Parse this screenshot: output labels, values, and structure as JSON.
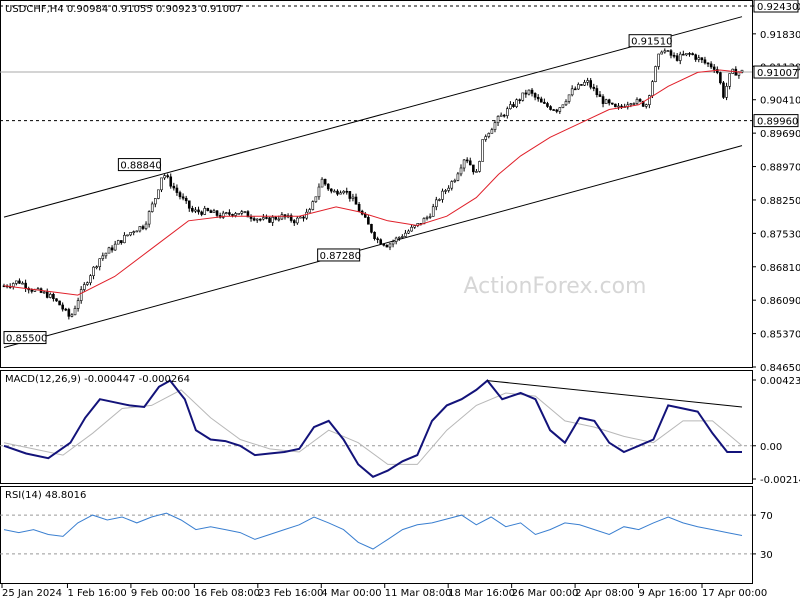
{
  "chart_data": {
    "type": "candlestick",
    "symbol": "USDCHF,H4",
    "header": "USDCHF,H4  0.90984 0.91055 0.90923 0.91007",
    "watermark": "ActionForex.com",
    "current_price": "0.91007",
    "price_axis": {
      "ylim": [
        0.8465,
        0.9243
      ],
      "ticks": [
        "0.92430",
        "0.91830",
        "0.91130",
        "0.90410",
        "0.89690",
        "0.88970",
        "0.88250",
        "0.87530",
        "0.86810",
        "0.86090",
        "0.85370",
        "0.84650"
      ],
      "tick_values": [
        0.9243,
        0.9183,
        0.9113,
        0.9041,
        0.8969,
        0.8897,
        0.8825,
        0.8753,
        0.8681,
        0.8609,
        0.8537,
        0.8465
      ]
    },
    "x_ticks": [
      "25 Jan 2024",
      "1 Feb 16:00",
      "9 Feb 00:00",
      "16 Feb 08:00",
      "23 Feb 16:00",
      "4 Mar 00:00",
      "11 Mar 08:00",
      "18 Mar 16:00",
      "26 Mar 00:00",
      "2 Apr 08:00",
      "9 Apr 16:00",
      "17 Apr 00:00"
    ],
    "annotations": [
      {
        "text": "0.85500",
        "value": 0.855
      },
      {
        "text": "0.88840",
        "value": 0.8884
      },
      {
        "text": "0.87280",
        "value": 0.8728
      },
      {
        "text": "0.91510",
        "value": 0.9151
      }
    ],
    "horizontal_levels": [
      {
        "text": "0.92430",
        "value": 0.9243,
        "style": "dashed"
      },
      {
        "text": "0.89960",
        "value": 0.8996,
        "style": "dashed"
      },
      {
        "text": "0.91007",
        "value": 0.91007,
        "style": "solid"
      }
    ],
    "channel_lines": {
      "upper": [
        [
          0.0,
          0.8788
        ],
        [
          1.0,
          0.922
        ]
      ],
      "lower": [
        [
          0.0,
          0.8507
        ],
        [
          1.0,
          0.8942
        ]
      ]
    },
    "price_path": [
      [
        0.0,
        0.864
      ],
      [
        0.02,
        0.865
      ],
      [
        0.04,
        0.863
      ],
      [
        0.06,
        0.862
      ],
      [
        0.075,
        0.86
      ],
      [
        0.09,
        0.857
      ],
      [
        0.1,
        0.861
      ],
      [
        0.115,
        0.866
      ],
      [
        0.13,
        0.87
      ],
      [
        0.145,
        0.872
      ],
      [
        0.16,
        0.874
      ],
      [
        0.175,
        0.876
      ],
      [
        0.19,
        0.877
      ],
      [
        0.205,
        0.883
      ],
      [
        0.215,
        0.8884
      ],
      [
        0.235,
        0.884
      ],
      [
        0.255,
        0.88
      ],
      [
        0.275,
        0.88
      ],
      [
        0.295,
        0.879
      ],
      [
        0.315,
        0.88
      ],
      [
        0.335,
        0.879
      ],
      [
        0.355,
        0.878
      ],
      [
        0.375,
        0.879
      ],
      [
        0.395,
        0.878
      ],
      [
        0.415,
        0.88
      ],
      [
        0.43,
        0.887
      ],
      [
        0.445,
        0.884
      ],
      [
        0.46,
        0.885
      ],
      [
        0.475,
        0.882
      ],
      [
        0.49,
        0.878
      ],
      [
        0.505,
        0.874
      ],
      [
        0.52,
        0.8728
      ],
      [
        0.54,
        0.875
      ],
      [
        0.56,
        0.877
      ],
      [
        0.575,
        0.879
      ],
      [
        0.59,
        0.883
      ],
      [
        0.61,
        0.887
      ],
      [
        0.625,
        0.892
      ],
      [
        0.64,
        0.888
      ],
      [
        0.65,
        0.896
      ],
      [
        0.67,
        0.9
      ],
      [
        0.69,
        0.903
      ],
      [
        0.71,
        0.906
      ],
      [
        0.73,
        0.903
      ],
      [
        0.75,
        0.902
      ],
      [
        0.77,
        0.906
      ],
      [
        0.79,
        0.908
      ],
      [
        0.81,
        0.904
      ],
      [
        0.83,
        0.902
      ],
      [
        0.85,
        0.904
      ],
      [
        0.87,
        0.903
      ],
      [
        0.88,
        0.909
      ],
      [
        0.89,
        0.9151
      ],
      [
        0.91,
        0.913
      ],
      [
        0.93,
        0.914
      ],
      [
        0.95,
        0.912
      ],
      [
        0.965,
        0.911
      ],
      [
        0.975,
        0.905
      ],
      [
        0.985,
        0.91
      ],
      [
        1.0,
        0.9101
      ]
    ],
    "ma_path": [
      [
        0.0,
        0.864
      ],
      [
        0.05,
        0.863
      ],
      [
        0.1,
        0.862
      ],
      [
        0.15,
        0.866
      ],
      [
        0.2,
        0.872
      ],
      [
        0.25,
        0.878
      ],
      [
        0.3,
        0.879
      ],
      [
        0.35,
        0.879
      ],
      [
        0.4,
        0.879
      ],
      [
        0.45,
        0.881
      ],
      [
        0.48,
        0.88
      ],
      [
        0.52,
        0.878
      ],
      [
        0.56,
        0.877
      ],
      [
        0.6,
        0.879
      ],
      [
        0.64,
        0.883
      ],
      [
        0.67,
        0.888
      ],
      [
        0.7,
        0.892
      ],
      [
        0.74,
        0.896
      ],
      [
        0.78,
        0.899
      ],
      [
        0.82,
        0.902
      ],
      [
        0.86,
        0.903
      ],
      [
        0.9,
        0.907
      ],
      [
        0.94,
        0.91
      ],
      [
        0.97,
        0.9105
      ],
      [
        1.0,
        0.91
      ]
    ],
    "macd": {
      "label": "MACD(12,26,9) -0.000447 -0.000264",
      "ticks": [
        "0.004237",
        "0.00",
        "-0.002142"
      ],
      "tick_values": [
        0.004237,
        0.0,
        -0.002142
      ],
      "ylim": [
        -0.002142,
        0.004237
      ],
      "main_path": [
        [
          0.0,
          0.0
        ],
        [
          0.03,
          -0.0005
        ],
        [
          0.06,
          -0.0008
        ],
        [
          0.09,
          0.0002
        ],
        [
          0.11,
          0.0018
        ],
        [
          0.13,
          0.003
        ],
        [
          0.15,
          0.0028
        ],
        [
          0.17,
          0.0026
        ],
        [
          0.19,
          0.0025
        ],
        [
          0.21,
          0.0038
        ],
        [
          0.225,
          0.0042
        ],
        [
          0.245,
          0.003
        ],
        [
          0.26,
          0.001
        ],
        [
          0.28,
          0.0004
        ],
        [
          0.3,
          0.0003
        ],
        [
          0.32,
          0.0
        ],
        [
          0.34,
          -0.0006
        ],
        [
          0.36,
          -0.0005
        ],
        [
          0.38,
          -0.0004
        ],
        [
          0.4,
          -0.0002
        ],
        [
          0.42,
          0.0012
        ],
        [
          0.44,
          0.0016
        ],
        [
          0.46,
          0.0004
        ],
        [
          0.48,
          -0.0012
        ],
        [
          0.5,
          -0.002
        ],
        [
          0.52,
          -0.0016
        ],
        [
          0.54,
          -0.001
        ],
        [
          0.56,
          -0.0006
        ],
        [
          0.58,
          0.0016
        ],
        [
          0.6,
          0.0026
        ],
        [
          0.62,
          0.003
        ],
        [
          0.64,
          0.0036
        ],
        [
          0.655,
          0.0042
        ],
        [
          0.675,
          0.003
        ],
        [
          0.7,
          0.0034
        ],
        [
          0.72,
          0.003
        ],
        [
          0.74,
          0.001
        ],
        [
          0.76,
          0.0002
        ],
        [
          0.78,
          0.0018
        ],
        [
          0.8,
          0.0016
        ],
        [
          0.82,
          0.0002
        ],
        [
          0.84,
          -0.0004
        ],
        [
          0.86,
          0.0
        ],
        [
          0.88,
          0.0004
        ],
        [
          0.9,
          0.0026
        ],
        [
          0.92,
          0.0024
        ],
        [
          0.94,
          0.0022
        ],
        [
          0.96,
          0.0008
        ],
        [
          0.98,
          -0.0004
        ],
        [
          1.0,
          -0.0004
        ]
      ],
      "signal_path": [
        [
          0.0,
          0.0002
        ],
        [
          0.04,
          -0.0002
        ],
        [
          0.08,
          -0.0006
        ],
        [
          0.12,
          0.0008
        ],
        [
          0.16,
          0.0024
        ],
        [
          0.2,
          0.0026
        ],
        [
          0.24,
          0.0036
        ],
        [
          0.28,
          0.0018
        ],
        [
          0.32,
          0.0004
        ],
        [
          0.36,
          -0.0002
        ],
        [
          0.4,
          -0.0004
        ],
        [
          0.44,
          0.001
        ],
        [
          0.48,
          0.0002
        ],
        [
          0.52,
          -0.0012
        ],
        [
          0.56,
          -0.0012
        ],
        [
          0.6,
          0.001
        ],
        [
          0.64,
          0.0026
        ],
        [
          0.68,
          0.0034
        ],
        [
          0.72,
          0.0032
        ],
        [
          0.76,
          0.0016
        ],
        [
          0.8,
          0.0012
        ],
        [
          0.84,
          0.0006
        ],
        [
          0.88,
          0.0002
        ],
        [
          0.92,
          0.0016
        ],
        [
          0.96,
          0.0016
        ],
        [
          1.0,
          0.0
        ]
      ],
      "trendline": [
        [
          0.655,
          0.0042
        ],
        [
          1.0,
          0.0025
        ]
      ]
    },
    "rsi": {
      "label": "RSI(14) 48.8016",
      "ticks": [
        "70",
        "30"
      ],
      "tick_values": [
        70,
        30
      ],
      "ylim": [
        0,
        100
      ],
      "path": [
        [
          0.0,
          55
        ],
        [
          0.02,
          52
        ],
        [
          0.04,
          55
        ],
        [
          0.06,
          50
        ],
        [
          0.08,
          48
        ],
        [
          0.1,
          62
        ],
        [
          0.12,
          70
        ],
        [
          0.14,
          65
        ],
        [
          0.16,
          68
        ],
        [
          0.18,
          62
        ],
        [
          0.2,
          68
        ],
        [
          0.22,
          72
        ],
        [
          0.24,
          65
        ],
        [
          0.26,
          55
        ],
        [
          0.28,
          58
        ],
        [
          0.3,
          55
        ],
        [
          0.32,
          52
        ],
        [
          0.34,
          45
        ],
        [
          0.36,
          50
        ],
        [
          0.38,
          55
        ],
        [
          0.4,
          60
        ],
        [
          0.42,
          68
        ],
        [
          0.44,
          62
        ],
        [
          0.46,
          55
        ],
        [
          0.48,
          42
        ],
        [
          0.5,
          35
        ],
        [
          0.52,
          45
        ],
        [
          0.54,
          55
        ],
        [
          0.56,
          60
        ],
        [
          0.58,
          62
        ],
        [
          0.6,
          66
        ],
        [
          0.62,
          70
        ],
        [
          0.64,
          60
        ],
        [
          0.66,
          68
        ],
        [
          0.68,
          58
        ],
        [
          0.7,
          62
        ],
        [
          0.72,
          50
        ],
        [
          0.74,
          55
        ],
        [
          0.76,
          62
        ],
        [
          0.78,
          60
        ],
        [
          0.8,
          55
        ],
        [
          0.82,
          50
        ],
        [
          0.84,
          58
        ],
        [
          0.86,
          55
        ],
        [
          0.88,
          62
        ],
        [
          0.9,
          68
        ],
        [
          0.92,
          62
        ],
        [
          0.94,
          58
        ],
        [
          0.96,
          55
        ],
        [
          0.98,
          52
        ],
        [
          1.0,
          49
        ]
      ]
    }
  }
}
